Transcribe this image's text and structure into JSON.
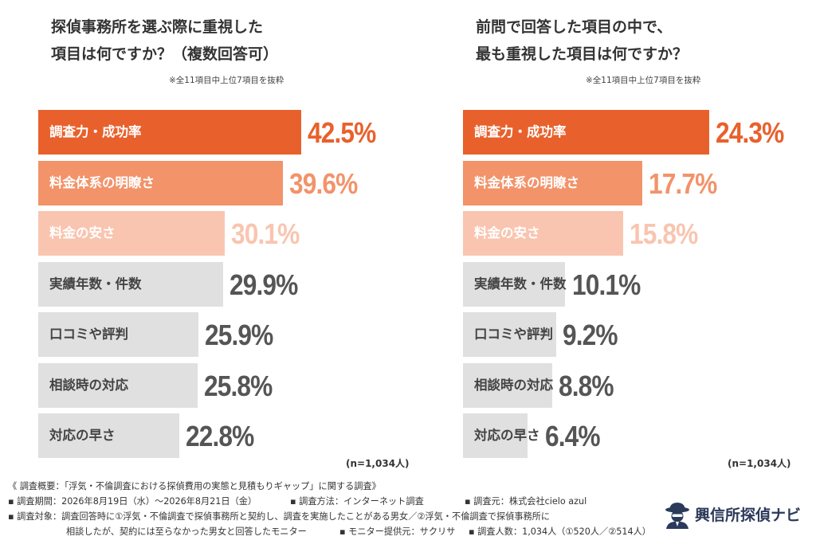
{
  "chart_data": [
    {
      "type": "bar",
      "orientation": "horizontal",
      "title_lines": [
        "探偵事務所を選ぶ際に重視した",
        "項目は何ですか？（複数回答可）"
      ],
      "note": "※全11項目中上位7項目を抜粋",
      "categories": [
        "調査力・成功率",
        "料金体系の明瞭さ",
        "料金の安さ",
        "実績年数・件数",
        "口コミや評判",
        "相談時の対応",
        "対応の早さ"
      ],
      "values": [
        42.5,
        39.6,
        30.1,
        29.9,
        25.9,
        25.8,
        22.8
      ],
      "value_labels": [
        "42.5%",
        "39.6%",
        "30.1%",
        "29.9%",
        "25.9%",
        "25.8%",
        "22.8%"
      ],
      "sample_note": "(n=1,034人)"
    },
    {
      "type": "bar",
      "orientation": "horizontal",
      "title_lines": [
        "前問で回答した項目の中で、",
        "最も重視した項目は何ですか？"
      ],
      "note": "※全11項目中上位7項目を抜粋",
      "categories": [
        "調査力・成功率",
        "料金体系の明瞭さ",
        "料金の安さ",
        "実績年数・件数",
        "口コミや評判",
        "相談時の対応",
        "対応の早さ"
      ],
      "values": [
        24.3,
        17.7,
        15.8,
        10.1,
        9.2,
        8.8,
        6.4
      ],
      "value_labels": [
        "24.3%",
        "17.7%",
        "15.8%",
        "10.1%",
        "9.2%",
        "8.8%",
        "6.4%"
      ],
      "sample_note": "(n=1,034人)"
    }
  ],
  "colors": {
    "bar_fills": [
      "#e8612c",
      "#f2936a",
      "#f9c5b0",
      "#e0e0e0",
      "#e0e0e0",
      "#e0e0e0",
      "#e0e0e0"
    ],
    "label_colors": [
      "#ffffff",
      "#ffffff",
      "#ffffff",
      "#444444",
      "#444444",
      "#444444",
      "#444444"
    ],
    "value_colors": [
      "#e8612c",
      "#f2936a",
      "#f9c5b0",
      "#555555",
      "#555555",
      "#555555",
      "#555555"
    ],
    "logo": "#2b3a5a"
  },
  "footer": {
    "survey_title": "《 調査概要：「浮気・不倫調査における探偵費用の実態と見積もりギャップ」に関する調査》",
    "period": "▪ 調査期間：2026年8月19日（水）〜2026年8月21日（金）",
    "method": "▪ 調査方法：インターネット調査",
    "source": "▪ 調査元：株式会社cielo azul",
    "target_1": "▪ 調査対象：調査回答時に①浮気・不倫調査で探偵事務所と契約し、調査を実施したことがある男女／②浮気・不倫調査で探偵事務所に",
    "target_2": "相談したが、契約には至らなかった男女と回答したモニター",
    "monitor": "▪ モニター提供元：サクリサ",
    "count": "▪ 調査人数：1,034人（①520人／②514人）"
  },
  "logo": {
    "text": "興信所探偵ナビ",
    "icon": "detective-icon"
  }
}
